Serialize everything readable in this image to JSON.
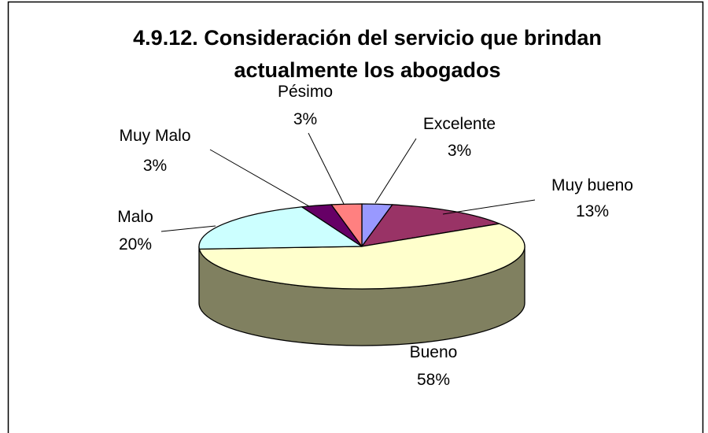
{
  "chart_data": {
    "type": "pie",
    "title_lines": [
      "4.9.12. Consideración del servicio que brindan",
      "actualmente los abogados"
    ],
    "slices": [
      {
        "label": "Excelente",
        "pct_label": "3%",
        "value": 3,
        "color": "#9999ff"
      },
      {
        "label": "Muy bueno",
        "pct_label": "13%",
        "value": 13,
        "color": "#993366"
      },
      {
        "label": "Bueno",
        "pct_label": "58%",
        "value": 58,
        "color": "#ffffcc"
      },
      {
        "label": "Malo",
        "pct_label": "20%",
        "value": 20,
        "color": "#ccffff"
      },
      {
        "label": "Muy Malo",
        "pct_label": "3%",
        "value": 3,
        "color": "#660066"
      },
      {
        "label": "Pésimo",
        "pct_label": "3%",
        "value": 3,
        "color": "#ff8080"
      }
    ],
    "side_color": "#808060",
    "three_d": true,
    "legend": "none"
  }
}
